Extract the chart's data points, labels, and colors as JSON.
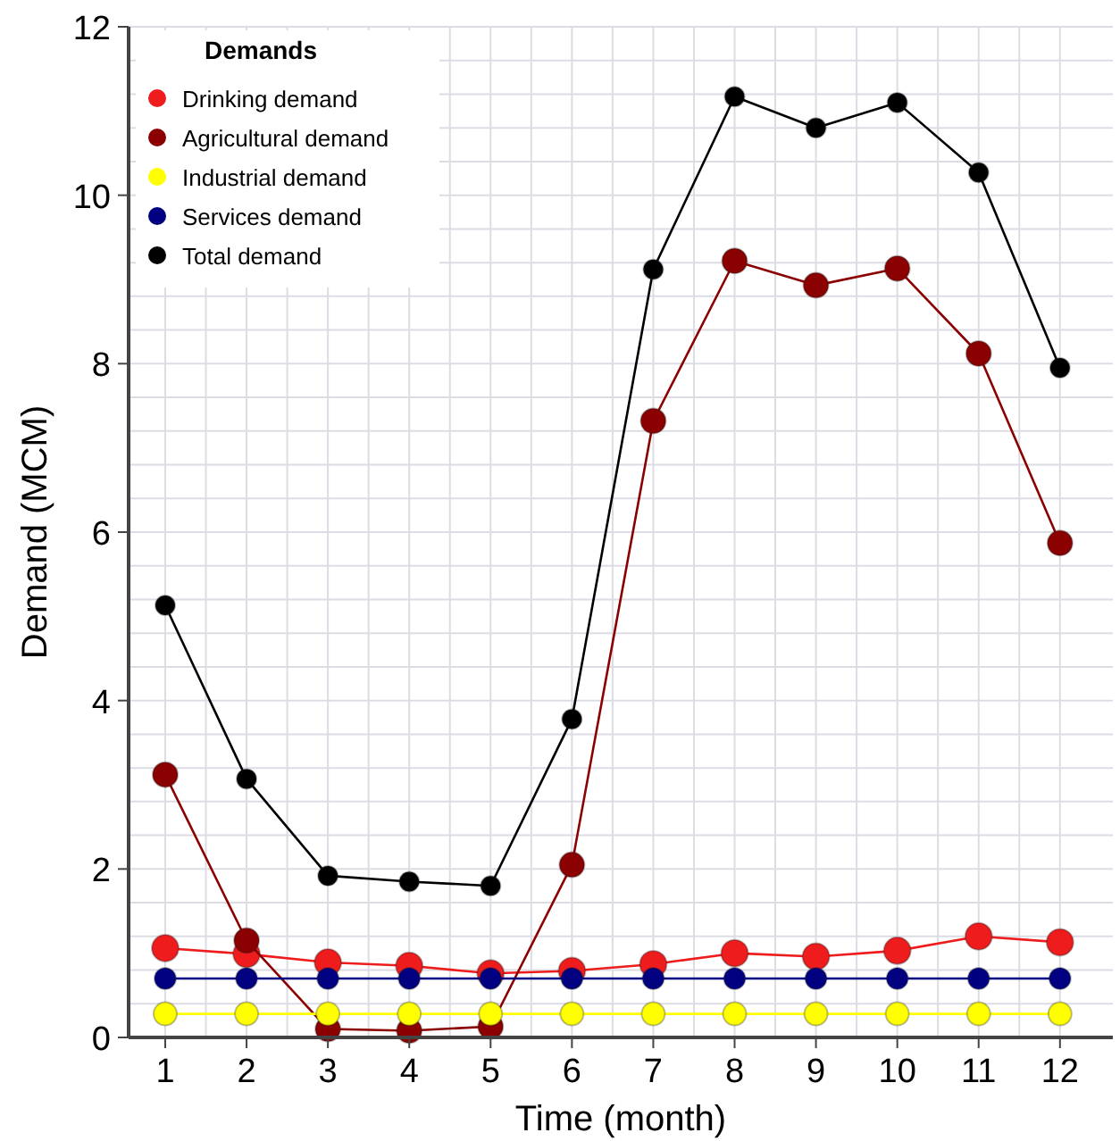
{
  "chart_data": {
    "type": "line",
    "xlabel": "Time (month)",
    "ylabel": "Demand (MCM)",
    "legend_title": "Demands",
    "legend": "top left",
    "grid": true,
    "marker": "circle",
    "line_style": "solid",
    "x": [
      1,
      2,
      3,
      4,
      5,
      6,
      7,
      8,
      9,
      10,
      11,
      12
    ],
    "xlim": [
      0.55,
      12.65
    ],
    "xticks": [
      1,
      2,
      3,
      4,
      5,
      6,
      7,
      8,
      9,
      10,
      11,
      12
    ],
    "ylim": [
      0,
      12
    ],
    "yticks": [
      0,
      2,
      4,
      6,
      8,
      10,
      12
    ],
    "series": [
      {
        "name": "Drinking demand",
        "color": "#ee1c1c",
        "values": [
          1.06,
          0.99,
          0.89,
          0.85,
          0.76,
          0.79,
          0.87,
          1.0,
          0.96,
          1.03,
          1.2,
          1.13
        ]
      },
      {
        "name": "Agricultural demand",
        "color": "#8b0000",
        "values": [
          3.12,
          1.15,
          0.1,
          0.08,
          0.13,
          2.05,
          7.32,
          9.22,
          8.93,
          9.13,
          8.12,
          5.87
        ]
      },
      {
        "name": "Industrial demand",
        "color": "#ffff00",
        "values": [
          0.28,
          0.28,
          0.28,
          0.28,
          0.28,
          0.28,
          0.28,
          0.28,
          0.28,
          0.28,
          0.28,
          0.28
        ]
      },
      {
        "name": "Services demand",
        "color": "#000080",
        "values": [
          0.7,
          0.7,
          0.7,
          0.7,
          0.7,
          0.7,
          0.7,
          0.7,
          0.7,
          0.7,
          0.7,
          0.7
        ]
      },
      {
        "name": "Total demand",
        "color": "#000000",
        "values": [
          5.13,
          3.07,
          1.92,
          1.85,
          1.8,
          3.78,
          9.12,
          11.17,
          10.8,
          11.1,
          10.27,
          7.95
        ]
      }
    ]
  }
}
